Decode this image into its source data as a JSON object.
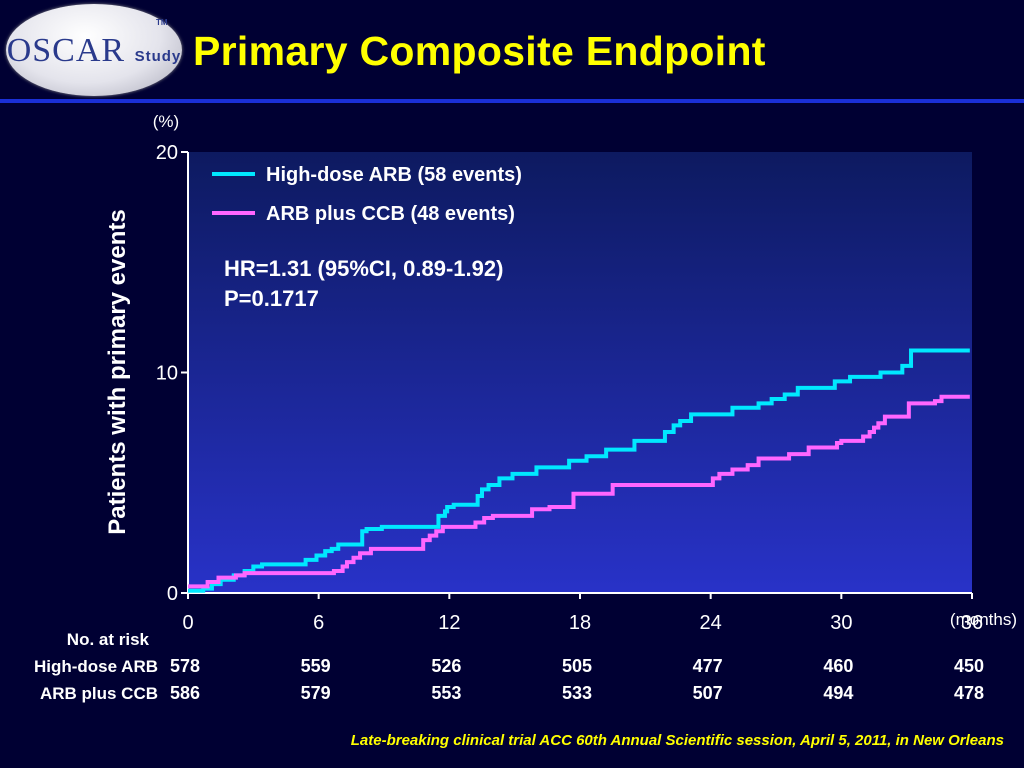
{
  "header": {
    "title": "Primary Composite Endpoint",
    "logo_text": "OSCAR Study",
    "logo_big": "OSCAR",
    "logo_small": "Study",
    "logo_tm": "TM"
  },
  "footer": {
    "citation": "Late-breaking clinical trial  ACC 60th Annual Scientific  session, April 5, 2011, in New Orleans"
  },
  "colors": {
    "background": "#000033",
    "title": "#ffff00",
    "rule": "#1a2fd6",
    "plot_top": "#0d1a60",
    "plot_bottom": "#2832c8"
  },
  "chart_data": {
    "type": "line",
    "ylabel": "Patients with primary events",
    "y_unit": "(%)",
    "x_unit": "(months)",
    "xlim": [
      0,
      36
    ],
    "ylim": [
      0,
      20
    ],
    "x_ticks": [
      0,
      6,
      12,
      18,
      24,
      30,
      36
    ],
    "y_ticks": [
      0,
      10,
      20
    ],
    "legend_position": "top-left",
    "annotation_lines": [
      "HR=1.31 (95%CI, 0.89-1.92)",
      "P=0.1717"
    ],
    "series": [
      {
        "name": "High-dose ARB (58 events)",
        "color": "#00e8ff",
        "x": [
          0,
          0.7,
          1.1,
          1.5,
          2.1,
          2.6,
          3.0,
          3.4,
          5.4,
          5.9,
          6.3,
          6.6,
          6.9,
          7.2,
          8.0,
          8.2,
          8.9,
          11.5,
          11.8,
          11.9,
          12.2,
          13.3,
          13.5,
          13.8,
          14.3,
          14.9,
          16.0,
          17.5,
          18.3,
          19.2,
          20.5,
          21.9,
          22.3,
          22.6,
          23.1,
          25.0,
          26.2,
          26.8,
          27.4,
          28.0,
          29.7,
          30.4,
          31.8,
          32.8,
          33.2,
          35.9
        ],
        "values": [
          0.1,
          0.2,
          0.4,
          0.6,
          0.8,
          1.0,
          1.2,
          1.3,
          1.5,
          1.7,
          1.9,
          2.0,
          2.2,
          2.2,
          2.8,
          2.9,
          3.0,
          3.5,
          3.7,
          3.9,
          4.0,
          4.4,
          4.7,
          4.9,
          5.2,
          5.4,
          5.7,
          6.0,
          6.2,
          6.5,
          6.9,
          7.3,
          7.6,
          7.8,
          8.1,
          8.4,
          8.6,
          8.8,
          9.0,
          9.3,
          9.6,
          9.8,
          10.0,
          10.3,
          11.0,
          11.0
        ]
      },
      {
        "name": "ARB plus CCB (48 events)",
        "color": "#ff66ff",
        "x": [
          0,
          0.9,
          1.4,
          2.2,
          2.6,
          6.7,
          7.1,
          7.3,
          7.6,
          7.9,
          8.4,
          10.8,
          11.1,
          11.4,
          11.7,
          13.2,
          13.6,
          14.0,
          15.8,
          16.6,
          17.7,
          19.5,
          24.1,
          24.4,
          25.0,
          25.7,
          26.2,
          27.6,
          28.5,
          29.8,
          30.0,
          31.0,
          31.3,
          31.5,
          31.7,
          32.0,
          33.1,
          34.3,
          34.6,
          35.9
        ],
        "values": [
          0.3,
          0.5,
          0.7,
          0.8,
          0.9,
          1.0,
          1.2,
          1.4,
          1.6,
          1.8,
          2.0,
          2.4,
          2.6,
          2.8,
          3.0,
          3.2,
          3.4,
          3.5,
          3.8,
          3.9,
          4.5,
          4.9,
          5.2,
          5.4,
          5.6,
          5.8,
          6.1,
          6.3,
          6.6,
          6.8,
          6.9,
          7.1,
          7.3,
          7.5,
          7.7,
          8.0,
          8.6,
          8.7,
          8.9,
          8.9
        ]
      }
    ],
    "risk_table": {
      "title": "No. at risk",
      "rows": [
        {
          "label": "High-dose ARB",
          "values": [
            "578",
            "559",
            "526",
            "505",
            "477",
            "460",
            "450"
          ]
        },
        {
          "label": "ARB plus CCB",
          "values": [
            "586",
            "579",
            "553",
            "533",
            "507",
            "494",
            "478"
          ]
        }
      ]
    }
  }
}
